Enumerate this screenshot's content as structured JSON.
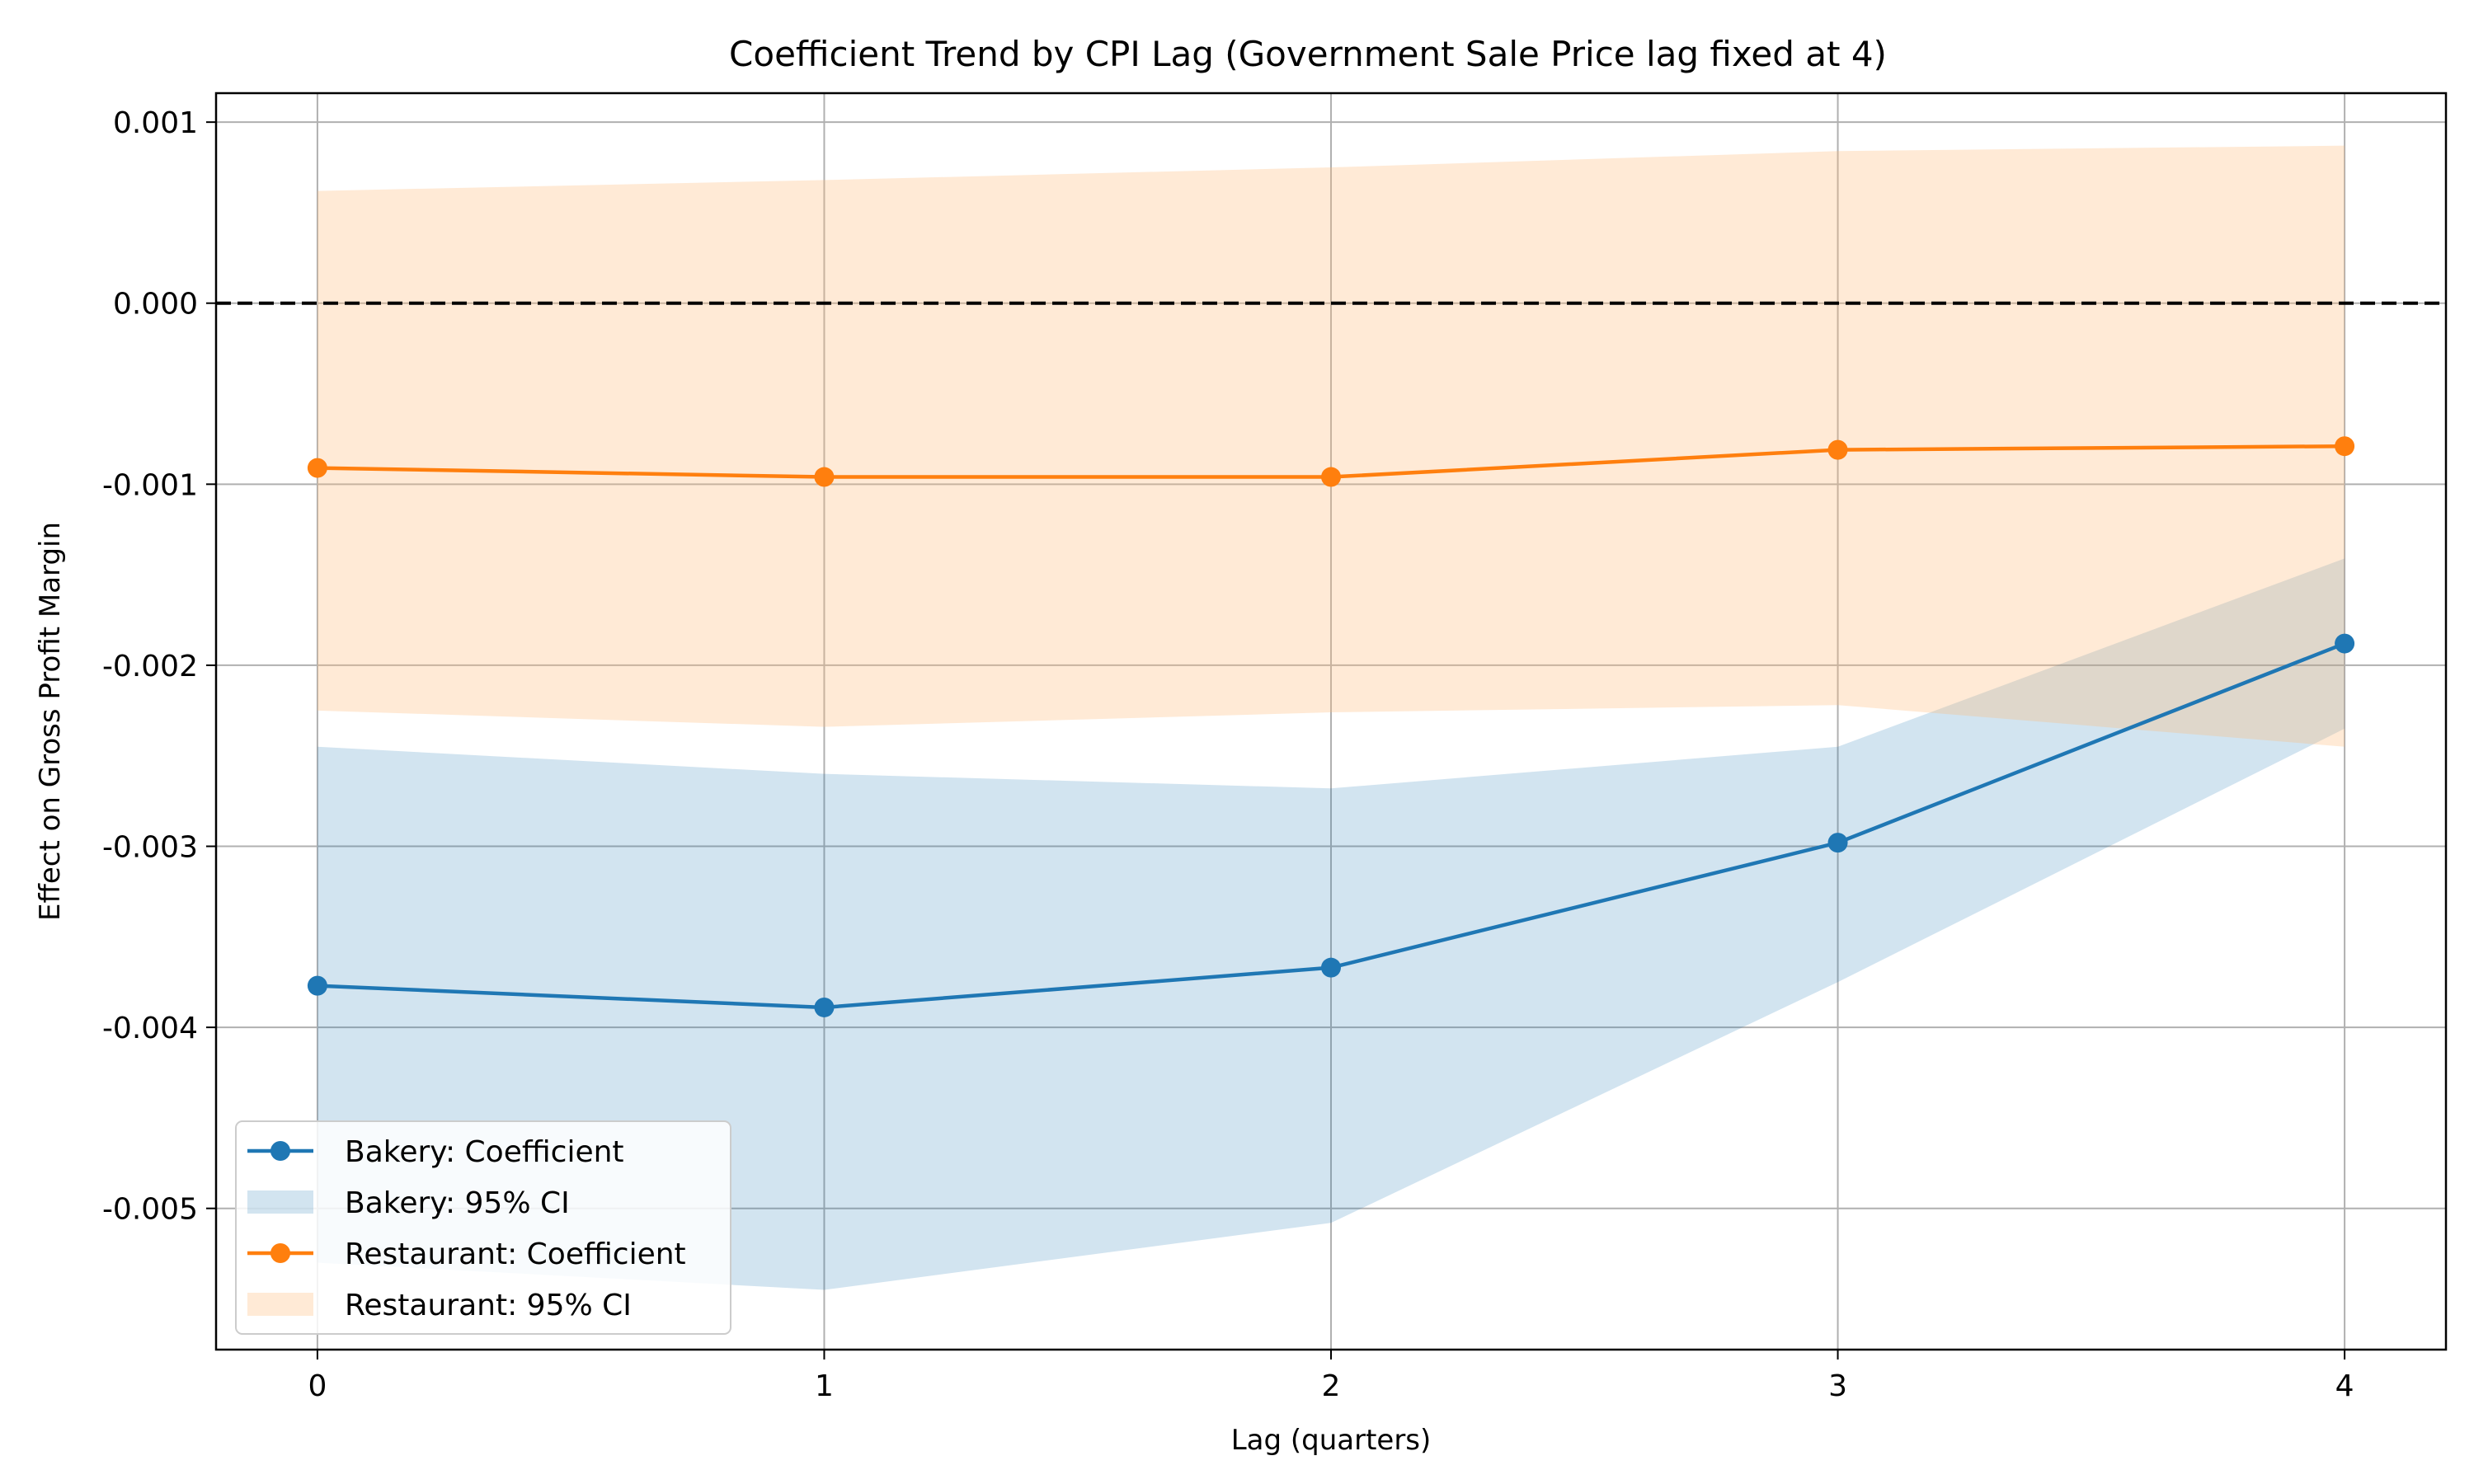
{
  "chart_data": {
    "type": "line",
    "title": "Coefficient Trend by CPI Lag (Government Sale Price lag fixed at 4)",
    "xlabel": "Lag (quarters)",
    "ylabel": "Effect on Gross Profit Margin",
    "x": [
      0,
      1,
      2,
      3,
      4
    ],
    "xlim": [
      -0.2,
      4.2
    ],
    "ylim": [
      -0.00578,
      0.00116
    ],
    "x_ticks": [
      "0",
      "1",
      "2",
      "3",
      "4"
    ],
    "y_ticks": [
      {
        "value": 0.001,
        "label": "0.001"
      },
      {
        "value": 0.0,
        "label": "0.000"
      },
      {
        "value": -0.001,
        "label": "-0.001"
      },
      {
        "value": -0.002,
        "label": "-0.002"
      },
      {
        "value": -0.003,
        "label": "-0.003"
      },
      {
        "value": -0.004,
        "label": "-0.004"
      },
      {
        "value": -0.005,
        "label": "-0.005"
      }
    ],
    "grid": true,
    "reference_line": {
      "y": 0.0,
      "style": "dashed",
      "color": "#000000"
    },
    "legend_position": "lower-left",
    "series": [
      {
        "name": "Bakery: Coefficient",
        "ci_name": "Bakery: 95% CI",
        "color": "#1f77b4",
        "ci_color": "#1f77b4",
        "values": [
          -0.00377,
          -0.00389,
          -0.00367,
          -0.00298,
          -0.00188
        ],
        "ci_lower": [
          -0.0053,
          -0.00545,
          -0.00508,
          -0.00375,
          -0.00235
        ],
        "ci_upper": [
          -0.00245,
          -0.0026,
          -0.00268,
          -0.00245,
          -0.00141
        ]
      },
      {
        "name": "Restaurant: Coefficient",
        "ci_name": "Restaurant: 95% CI",
        "color": "#ff7f0e",
        "ci_color": "#ffbb78",
        "values": [
          -0.00091,
          -0.00096,
          -0.00096,
          -0.00081,
          -0.00079
        ],
        "ci_lower": [
          -0.00225,
          -0.00234,
          -0.00226,
          -0.00222,
          -0.00245
        ],
        "ci_upper": [
          0.00062,
          0.00068,
          0.00075,
          0.00084,
          0.00087
        ]
      }
    ]
  }
}
